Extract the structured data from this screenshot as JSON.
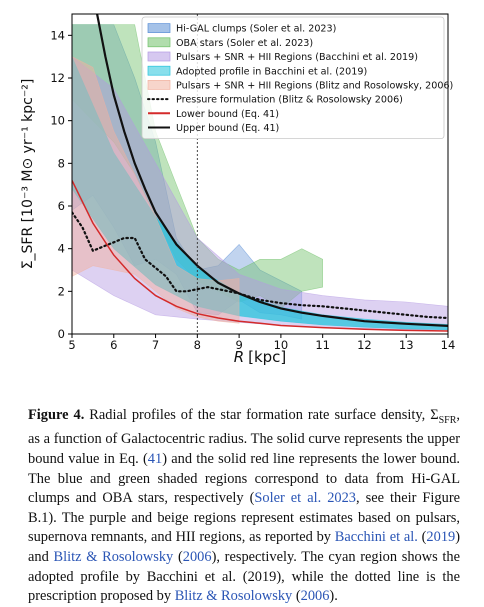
{
  "chart_data": {
    "type": "line",
    "xlabel_var": "R",
    "xlabel_unit": "[kpc]",
    "ylabel": "Σ_SFR [10⁻³ M⊙ yr⁻¹ kpc⁻²]",
    "xlim": [
      5,
      14
    ],
    "ylim": [
      0,
      15
    ],
    "xticks": [
      5,
      6,
      7,
      8,
      9,
      10,
      11,
      12,
      13,
      14
    ],
    "yticks": [
      0,
      2,
      4,
      6,
      8,
      10,
      12,
      14
    ],
    "vline_x": 8,
    "legend_position": "top-right",
    "bands": [
      {
        "name": "Hi-GAL clumps (Soler et al. 2023)",
        "color": "#5b8fd6",
        "opacity": 0.38,
        "x": [
          5.0,
          5.5,
          6.0,
          6.5,
          7.0,
          7.5,
          8.0,
          8.5,
          9.0,
          9.5,
          10.0,
          10.5
        ],
        "lower": [
          5.8,
          6.5,
          5.0,
          3.2,
          3.5,
          2.8,
          1.0,
          0.9,
          1.6,
          1.0,
          0.9,
          0.7
        ],
        "upper": [
          14.5,
          14.5,
          14.5,
          12.0,
          9.0,
          4.5,
          3.0,
          3.2,
          4.2,
          3.0,
          2.5,
          2.0
        ]
      },
      {
        "name": "OBA stars (Soler et al. 2023)",
        "color": "#71c16a",
        "opacity": 0.45,
        "x": [
          5.0,
          5.5,
          6.0,
          6.5,
          7.0,
          7.5,
          8.0,
          8.5,
          9.0,
          9.5,
          10.0,
          10.5,
          11.0
        ],
        "lower": [
          11.0,
          10.0,
          9.0,
          7.5,
          5.5,
          3.5,
          2.5,
          2.0,
          1.5,
          1.8,
          1.2,
          2.0,
          2.2
        ],
        "upper": [
          14.5,
          14.5,
          14.5,
          14.5,
          9.5,
          7.0,
          4.5,
          3.5,
          3.0,
          3.5,
          3.5,
          4.0,
          3.5
        ]
      },
      {
        "name": "Pulsars + SNR + HII Regions (Bacchini et al. 2019)",
        "color": "#b49ae3",
        "opacity": 0.45,
        "x": [
          5,
          6,
          7,
          8,
          9,
          10,
          11,
          12,
          13,
          14
        ],
        "lower": [
          3.0,
          1.8,
          0.9,
          0.7,
          0.55,
          0.4,
          0.3,
          0.25,
          0.2,
          0.2
        ],
        "upper": [
          13.0,
          11.5,
          8.0,
          4.5,
          2.8,
          2.1,
          1.8,
          1.6,
          1.5,
          1.3
        ]
      },
      {
        "name": "Adopted profile in Bacchini et al. (2019)",
        "color": "#27c4dc",
        "opacity": 0.75,
        "x": [
          5,
          6,
          7,
          8,
          9,
          10,
          11,
          12,
          13,
          14
        ],
        "lower": [
          6.8,
          4.0,
          2.3,
          1.3,
          0.85,
          0.6,
          0.42,
          0.32,
          0.24,
          0.2
        ],
        "upper": [
          13.0,
          8.5,
          5.5,
          3.1,
          1.9,
          1.25,
          0.9,
          0.7,
          0.55,
          0.45
        ]
      },
      {
        "name": "Pulsars + SNR + HII Regions (Blitz and Rosolowsky, 2006)",
        "color": "#f1b2a0",
        "opacity": 0.5,
        "x": [
          5,
          5.5,
          6,
          6.5,
          7,
          7.5,
          8,
          8.5,
          9
        ],
        "lower": [
          2.7,
          3.2,
          3.0,
          2.8,
          2.0,
          1.2,
          0.8,
          0.6,
          0.5
        ],
        "upper": [
          13.0,
          12.5,
          9.5,
          7.5,
          5.5,
          3.2,
          2.6,
          2.5,
          2.6
        ]
      }
    ],
    "lines": [
      {
        "name": "Pressure formulation (Blitz & Rosolowsky 2006)",
        "color": "#111111",
        "style": "dotted",
        "x": [
          5.0,
          5.25,
          5.5,
          5.75,
          6.0,
          6.25,
          6.5,
          6.75,
          7.0,
          7.25,
          7.5,
          7.75,
          8.0,
          8.25,
          8.5,
          8.75,
          9.0,
          9.5,
          10.0,
          10.5,
          11.0,
          11.5,
          12.0,
          12.5,
          13.0,
          13.5,
          14.0
        ],
        "y": [
          5.7,
          5.0,
          3.9,
          4.1,
          4.3,
          4.5,
          4.5,
          3.5,
          3.1,
          2.7,
          2.0,
          2.0,
          2.1,
          2.2,
          2.1,
          2.0,
          1.9,
          1.6,
          1.45,
          1.35,
          1.3,
          1.2,
          1.1,
          1.0,
          0.9,
          0.8,
          0.75
        ]
      },
      {
        "name": "Lower bound (Eq. 41)",
        "color": "#d42a2a",
        "style": "solid",
        "x": [
          5.0,
          5.5,
          6.0,
          6.5,
          7.0,
          7.5,
          8.0,
          8.5,
          9.0,
          9.5,
          10.0,
          11.0,
          12.0,
          13.0,
          14.0
        ],
        "y": [
          7.2,
          5.2,
          3.7,
          2.6,
          1.8,
          1.3,
          0.95,
          0.75,
          0.6,
          0.5,
          0.4,
          0.3,
          0.22,
          0.17,
          0.14
        ]
      },
      {
        "name": "Upper bound (Eq. 41)",
        "color": "#111111",
        "style": "solid",
        "x": [
          5.6,
          5.8,
          6.0,
          6.25,
          6.5,
          6.75,
          7.0,
          7.5,
          8.0,
          8.5,
          9.0,
          9.5,
          10.0,
          10.5,
          11.0,
          12.0,
          13.0,
          14.0
        ],
        "y": [
          15.0,
          13.0,
          11.2,
          9.5,
          8.0,
          6.8,
          5.7,
          4.2,
          3.2,
          2.4,
          1.9,
          1.5,
          1.2,
          1.0,
          0.85,
          0.6,
          0.48,
          0.38
        ]
      }
    ],
    "legend": [
      {
        "label": "Hi-GAL clumps (Soler et al. 2023)",
        "swatch": "band",
        "color": "#5b8fd6"
      },
      {
        "label": "OBA stars (Soler et al. 2023)",
        "swatch": "band",
        "color": "#71c16a"
      },
      {
        "label": "Pulsars + SNR + HII Regions (Bacchini et al. 2019)",
        "swatch": "band",
        "color": "#b49ae3"
      },
      {
        "label": "Adopted profile in Bacchini et al. (2019)",
        "swatch": "band",
        "color": "#27c4dc"
      },
      {
        "label": "Pulsars + SNR + HII Regions (Blitz and Rosolowsky, 2006)",
        "swatch": "band",
        "color": "#f1b2a0"
      },
      {
        "label": "Pressure formulation (Blitz & Rosolowsky 2006)",
        "swatch": "dotted",
        "color": "#111111"
      },
      {
        "label": "Lower bound (Eq. 41)",
        "swatch": "line",
        "color": "#d42a2a"
      },
      {
        "label": "Upper bound (Eq. 41)",
        "swatch": "line",
        "color": "#111111"
      }
    ]
  },
  "caption": {
    "fig_label": "Figure 4.",
    "part1": " Radial profiles of the star formation rate surface density, Σ",
    "sub": "SFR",
    "part2": ", as a function of Galactocentric radius. The solid curve represents the upper bound value in Eq. (",
    "eq_ref": "41",
    "part3": ") and the solid red line represents the lower bound. The blue and green shaded regions correspond to data from Hi-GAL clumps and OBA stars, respectively (",
    "cite_soler": "Soler et al. 2023",
    "part4": ", see their Figure B.1). The purple and beige regions represent estimates based on pulsars, supernova remnants, and HII regions, as reported by ",
    "cite_bacchini": "Bacchini et al.",
    "part5": " (",
    "cite_bacchini_year": "2019",
    "part6": ") and ",
    "cite_blitz": "Blitz & Rosolowsky",
    "part7": " (",
    "cite_blitz_year": "2006",
    "part8": "), respectively. The cyan region shows the adopted profile by Bacchini et al. (2019), while the dotted line is the prescription proposed by ",
    "cite_blitz2": "Blitz & Rosolowsky",
    "part9": " (",
    "cite_blitz2_year": "2006",
    "part10": ")."
  }
}
